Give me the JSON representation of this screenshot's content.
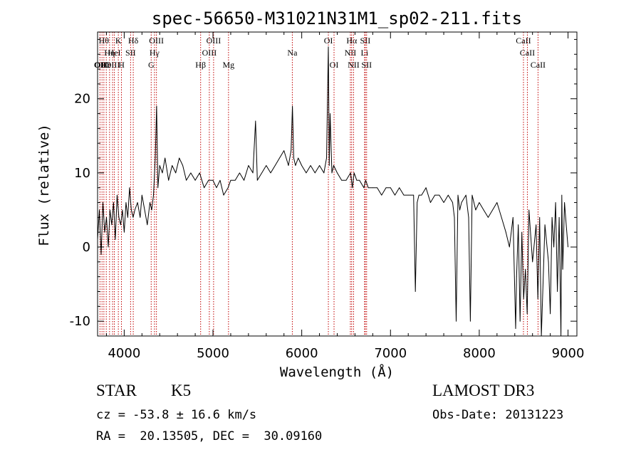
{
  "chart_data": {
    "type": "line",
    "title": "spec-56650-M31021N31M1_sp02-211.fits",
    "xlabel": "Wavelength (Å)",
    "ylabel": "Flux (relative)",
    "xlim": [
      3700,
      9100
    ],
    "ylim": [
      -12,
      29
    ],
    "xticks": [
      4000,
      5000,
      6000,
      7000,
      8000,
      9000
    ],
    "yticks": [
      -10,
      0,
      10,
      20
    ],
    "series": [
      {
        "name": "flux",
        "x": [
          3700,
          3720,
          3740,
          3760,
          3780,
          3800,
          3820,
          3840,
          3860,
          3880,
          3900,
          3920,
          3940,
          3960,
          3980,
          4000,
          4020,
          4040,
          4060,
          4080,
          4100,
          4120,
          4150,
          4180,
          4200,
          4230,
          4260,
          4290,
          4310,
          4330,
          4350,
          4365,
          4380,
          4400,
          4430,
          4460,
          4500,
          4540,
          4580,
          4620,
          4660,
          4700,
          4750,
          4800,
          4850,
          4900,
          4950,
          5000,
          5040,
          5080,
          5120,
          5170,
          5200,
          5250,
          5300,
          5350,
          5400,
          5450,
          5480,
          5500,
          5550,
          5600,
          5650,
          5700,
          5750,
          5800,
          5850,
          5880,
          5895,
          5910,
          5930,
          5960,
          6000,
          6050,
          6100,
          6150,
          6200,
          6250,
          6280,
          6300,
          6310,
          6320,
          6340,
          6360,
          6400,
          6450,
          6500,
          6550,
          6570,
          6590,
          6620,
          6650,
          6700,
          6720,
          6750,
          6800,
          6850,
          6900,
          6950,
          7000,
          7050,
          7100,
          7150,
          7200,
          7230,
          7260,
          7280,
          7300,
          7320,
          7350,
          7400,
          7450,
          7500,
          7550,
          7600,
          7650,
          7700,
          7720,
          7740,
          7760,
          7780,
          7800,
          7850,
          7880,
          7900,
          7920,
          7940,
          7960,
          8000,
          8050,
          8100,
          8150,
          8200,
          8250,
          8300,
          8340,
          8380,
          8410,
          8420,
          8440,
          8460,
          8480,
          8500,
          8520,
          8540,
          8560,
          8600,
          8640,
          8660,
          8680,
          8700,
          8740,
          8780,
          8800,
          8820,
          8840,
          8860,
          8880,
          8900,
          8920,
          8930,
          8940,
          8960,
          8980,
          9000
        ],
        "values": [
          1,
          5,
          -1,
          6,
          2,
          4,
          0,
          5,
          3,
          6,
          1,
          7,
          4,
          3,
          5,
          2,
          6,
          4,
          8,
          5,
          4,
          5,
          6,
          4,
          7,
          5,
          3,
          6,
          5,
          7,
          12,
          19,
          8,
          11,
          10,
          12,
          9,
          11,
          10,
          12,
          11,
          9,
          10,
          9,
          10,
          8,
          9,
          9,
          8,
          9,
          7,
          8,
          9,
          9,
          10,
          9,
          11,
          10,
          17,
          9,
          10,
          11,
          10,
          11,
          12,
          13,
          11,
          13,
          19,
          12,
          11,
          12,
          11,
          10,
          11,
          10,
          11,
          10,
          12,
          27,
          11,
          18,
          10,
          11,
          10,
          9,
          9,
          10,
          8,
          10,
          9,
          9,
          8,
          9,
          8,
          8,
          8,
          7,
          8,
          8,
          7,
          8,
          7,
          7,
          7,
          7,
          -6,
          6,
          7,
          7,
          8,
          6,
          7,
          7,
          6,
          7,
          6,
          4,
          -10,
          7,
          5,
          6,
          7,
          4,
          -10,
          7,
          6,
          5,
          6,
          5,
          4,
          5,
          6,
          4,
          2,
          0,
          4,
          -11,
          -4,
          3,
          -10,
          2,
          -7,
          -3,
          -9,
          5,
          -2,
          3,
          -7,
          4,
          -12,
          3,
          -2,
          -9,
          4,
          0,
          6,
          -6,
          4,
          -12,
          7,
          -3,
          6,
          3,
          0
        ]
      }
    ],
    "lines": [
      {
        "wl": 3727,
        "row": 1,
        "label": "OII"
      },
      {
        "wl": 3750,
        "row": 3,
        "label": "OIII"
      },
      {
        "wl": 3771,
        "row": 0,
        "label": "Hθ"
      },
      {
        "wl": 3798,
        "row": 1,
        "label": "He"
      },
      {
        "wl": 3835,
        "row": 2,
        "label": "Hη"
      },
      {
        "wl": 3869,
        "row": 3,
        "label": "OIII"
      },
      {
        "wl": 3889,
        "row": 2,
        "label": "HeI"
      },
      {
        "wl": 3934,
        "row": 0,
        "label": "K"
      },
      {
        "wl": 3969,
        "row": 3,
        "label": "H"
      },
      {
        "wl": 4072,
        "row": 2,
        "label": "SII"
      },
      {
        "wl": 4102,
        "row": 0,
        "label": "Hδ"
      },
      {
        "wl": 4304,
        "row": 4,
        "label": "G"
      },
      {
        "wl": 4341,
        "row": 2,
        "label": "Hγ"
      },
      {
        "wl": 4363,
        "row": 0,
        "label": "OIII"
      },
      {
        "wl": 4861,
        "row": 3,
        "label": "Hβ"
      },
      {
        "wl": 4959,
        "row": 2,
        "label": "OIII"
      },
      {
        "wl": 5007,
        "row": 0,
        "label": "OIII"
      },
      {
        "wl": 5175,
        "row": 3,
        "label": "Mg"
      },
      {
        "wl": 5894,
        "row": 2,
        "label": "Na"
      },
      {
        "wl": 6300,
        "row": 0,
        "label": "OI"
      },
      {
        "wl": 6364,
        "row": 3,
        "label": "OI"
      },
      {
        "wl": 6548,
        "row": 2,
        "label": "NII"
      },
      {
        "wl": 6563,
        "row": 0,
        "label": "Hα"
      },
      {
        "wl": 6584,
        "row": 3,
        "label": "NII"
      },
      {
        "wl": 6708,
        "row": 2,
        "label": "Li"
      },
      {
        "wl": 6716,
        "row": 0,
        "label": "SII"
      },
      {
        "wl": 6731,
        "row": 3,
        "label": "SII"
      },
      {
        "wl": 8498,
        "row": 0,
        "label": "CaII"
      },
      {
        "wl": 8542,
        "row": 2,
        "label": "CaII"
      },
      {
        "wl": 8662,
        "row": 3,
        "label": "CaII"
      }
    ]
  },
  "info": {
    "object_class": "STAR",
    "subclass": "K5",
    "survey": "LAMOST DR3",
    "cz": "cz = -53.8 ± 16.6 km/s",
    "obs_date": "Obs-Date: 20131223",
    "ra_dec": "RA =  20.13505, DEC =  30.09160"
  }
}
